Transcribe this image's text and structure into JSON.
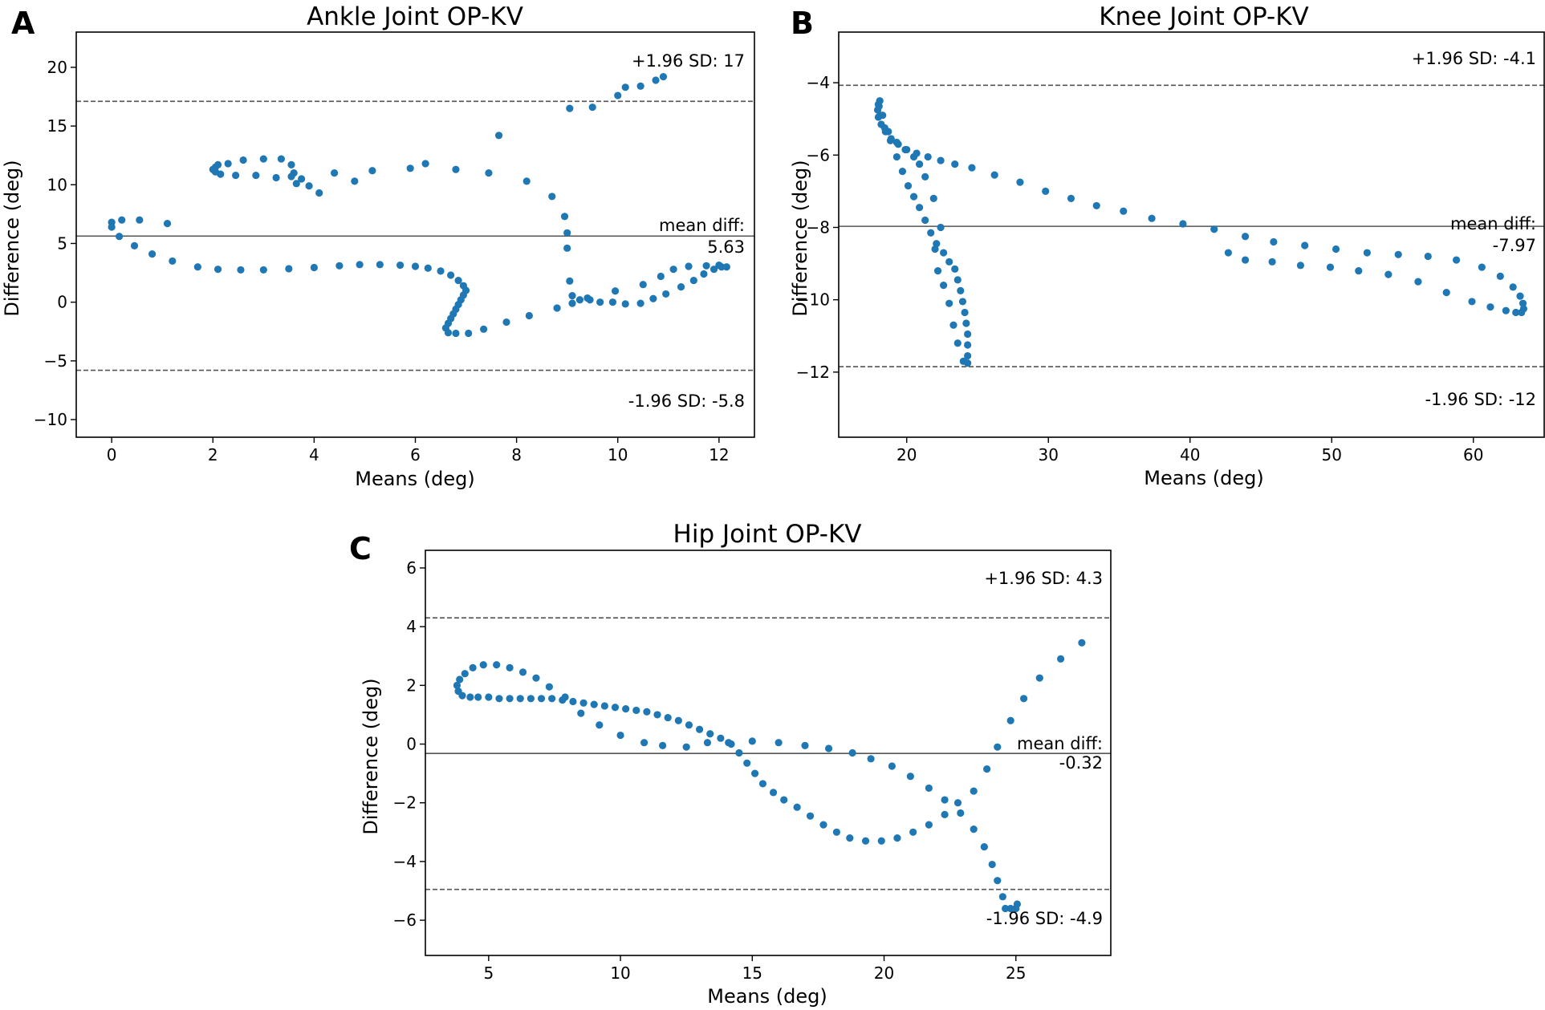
{
  "figure": {
    "panels": [
      {
        "letter": "A"
      },
      {
        "letter": "B"
      },
      {
        "letter": "C"
      }
    ]
  },
  "colors": {
    "point": "#1f77b4",
    "axis": "#000000",
    "line": "#555555",
    "text": "#000000"
  },
  "chart_data": [
    {
      "type": "scatter",
      "title": "Ankle Joint OP-KV",
      "xlabel": "Means (deg)",
      "ylabel": "Difference (deg)",
      "xlim": [
        -0.7,
        12.7
      ],
      "ylim": [
        -11.5,
        23
      ],
      "xticks": [
        0,
        2,
        4,
        6,
        8,
        10,
        12
      ],
      "yticks": [
        -10,
        -5,
        0,
        5,
        10,
        15,
        20
      ],
      "upper_loa": {
        "value": 17.1,
        "label": "+1.96 SD: 17"
      },
      "mean_diff": {
        "value": 5.63,
        "label": "mean diff:",
        "value_label": "5.63"
      },
      "lower_loa": {
        "value": -5.8,
        "label": "-1.96 SD: -5.8"
      },
      "points": [
        [
          0,
          6.8
        ],
        [
          0,
          6.4
        ],
        [
          0.2,
          7
        ],
        [
          0.55,
          7
        ],
        [
          1.1,
          6.7
        ],
        [
          0.15,
          5.6
        ],
        [
          0.45,
          4.8
        ],
        [
          0.8,
          4.1
        ],
        [
          1.2,
          3.5
        ],
        [
          1.7,
          3.0
        ],
        [
          2.1,
          2.8
        ],
        [
          2.55,
          2.75
        ],
        [
          3.0,
          2.75
        ],
        [
          3.5,
          2.85
        ],
        [
          4.0,
          2.95
        ],
        [
          4.5,
          3.1
        ],
        [
          4.9,
          3.2
        ],
        [
          5.3,
          3.2
        ],
        [
          5.7,
          3.15
        ],
        [
          6.0,
          3.05
        ],
        [
          6.25,
          2.9
        ],
        [
          6.5,
          2.65
        ],
        [
          6.7,
          2.3
        ],
        [
          6.85,
          1.85
        ],
        [
          6.95,
          1.4
        ],
        [
          7.0,
          1.0
        ],
        [
          6.95,
          0.6
        ],
        [
          6.9,
          0.2
        ],
        [
          6.85,
          -0.2
        ],
        [
          6.8,
          -0.6
        ],
        [
          6.75,
          -1.0
        ],
        [
          6.7,
          -1.4
        ],
        [
          6.65,
          -1.8
        ],
        [
          6.6,
          -2.2
        ],
        [
          6.65,
          -2.6
        ],
        [
          6.8,
          -2.65
        ],
        [
          7.05,
          -2.65
        ],
        [
          7.35,
          -2.3
        ],
        [
          7.8,
          -1.7
        ],
        [
          8.25,
          -1.15
        ],
        [
          8.8,
          -0.5
        ],
        [
          9.1,
          0.55
        ],
        [
          9.25,
          0.2
        ],
        [
          9.45,
          0.2
        ],
        [
          9.65,
          0.0
        ],
        [
          9.9,
          0.0
        ],
        [
          10.15,
          -0.15
        ],
        [
          10.45,
          -0.1
        ],
        [
          10.7,
          0.3
        ],
        [
          10.95,
          0.7
        ],
        [
          11.25,
          1.3
        ],
        [
          11.5,
          1.85
        ],
        [
          11.7,
          2.4
        ],
        [
          11.9,
          2.8
        ],
        [
          12.05,
          3.0
        ],
        [
          12.15,
          3.0
        ],
        [
          12.0,
          3.15
        ],
        [
          11.75,
          3.1
        ],
        [
          11.4,
          3.05
        ],
        [
          11.1,
          2.8
        ],
        [
          10.85,
          2.2
        ],
        [
          10.5,
          1.5
        ],
        [
          9.95,
          0.95
        ],
        [
          9.4,
          0.35
        ],
        [
          9.1,
          -0.1
        ],
        [
          9.05,
          1.8
        ],
        [
          9.0,
          4.6
        ],
        [
          9.0,
          5.9
        ],
        [
          8.95,
          7.3
        ],
        [
          8.7,
          9.0
        ],
        [
          8.2,
          10.3
        ],
        [
          7.45,
          11.0
        ],
        [
          7.65,
          14.2
        ],
        [
          9.05,
          16.5
        ],
        [
          9.5,
          16.6
        ],
        [
          10.0,
          17.6
        ],
        [
          10.15,
          18.3
        ],
        [
          10.45,
          18.4
        ],
        [
          10.75,
          18.9
        ],
        [
          10.9,
          19.2
        ],
        [
          2.0,
          11.3
        ],
        [
          2.05,
          11.5
        ],
        [
          2.1,
          11.7
        ],
        [
          2.3,
          11.8
        ],
        [
          2.6,
          12.1
        ],
        [
          3.0,
          12.2
        ],
        [
          3.35,
          12.2
        ],
        [
          3.55,
          11.7
        ],
        [
          3.6,
          11.0
        ],
        [
          3.75,
          10.5
        ],
        [
          3.9,
          9.9
        ],
        [
          4.1,
          9.3
        ],
        [
          3.65,
          10.1
        ],
        [
          3.55,
          10.7
        ],
        [
          3.25,
          10.6
        ],
        [
          2.85,
          10.8
        ],
        [
          2.45,
          10.8
        ],
        [
          2.15,
          10.9
        ],
        [
          2.05,
          11.1
        ],
        [
          4.4,
          11.0
        ],
        [
          4.8,
          10.3
        ],
        [
          5.15,
          11.2
        ],
        [
          5.9,
          11.4
        ],
        [
          6.2,
          11.8
        ],
        [
          6.8,
          11.3
        ]
      ]
    },
    {
      "type": "scatter",
      "title": "Knee Joint OP-KV",
      "xlabel": "Means (deg)",
      "ylabel": "Difference (deg)",
      "xlim": [
        15.2,
        65
      ],
      "ylim": [
        -13.8,
        -2.6
      ],
      "xticks": [
        20,
        30,
        40,
        50,
        60
      ],
      "yticks": [
        -12,
        -10,
        -8,
        -6,
        -4
      ],
      "upper_loa": {
        "value": -4.07,
        "label": "+1.96 SD: -4.1"
      },
      "mean_diff": {
        "value": -7.97,
        "label": "mean diff:",
        "value_label": "-7.97"
      },
      "lower_loa": {
        "value": -11.85,
        "label": "-1.96 SD: -12"
      },
      "points": [
        [
          18.1,
          -4.5
        ],
        [
          18.0,
          -4.6
        ],
        [
          17.95,
          -4.75
        ],
        [
          18.0,
          -4.95
        ],
        [
          18.2,
          -5.15
        ],
        [
          18.5,
          -5.35
        ],
        [
          18.9,
          -5.55
        ],
        [
          19.4,
          -5.7
        ],
        [
          20.0,
          -5.85
        ],
        [
          20.7,
          -5.95
        ],
        [
          21.5,
          -6.05
        ],
        [
          22.4,
          -6.15
        ],
        [
          23.4,
          -6.25
        ],
        [
          24.6,
          -6.35
        ],
        [
          26.2,
          -6.55
        ],
        [
          28.0,
          -6.75
        ],
        [
          29.8,
          -7.0
        ],
        [
          31.6,
          -7.2
        ],
        [
          33.4,
          -7.4
        ],
        [
          35.3,
          -7.55
        ],
        [
          37.3,
          -7.75
        ],
        [
          39.5,
          -7.9
        ],
        [
          41.7,
          -8.05
        ],
        [
          43.9,
          -8.25
        ],
        [
          45.9,
          -8.4
        ],
        [
          48.1,
          -8.5
        ],
        [
          50.3,
          -8.6
        ],
        [
          52.5,
          -8.7
        ],
        [
          54.7,
          -8.75
        ],
        [
          56.8,
          -8.8
        ],
        [
          58.8,
          -8.9
        ],
        [
          60.6,
          -9.1
        ],
        [
          61.9,
          -9.35
        ],
        [
          62.8,
          -9.65
        ],
        [
          63.3,
          -9.9
        ],
        [
          63.5,
          -10.1
        ],
        [
          63.55,
          -10.25
        ],
        [
          63.4,
          -10.35
        ],
        [
          63.0,
          -10.35
        ],
        [
          62.3,
          -10.3
        ],
        [
          61.2,
          -10.2
        ],
        [
          59.9,
          -10.05
        ],
        [
          58.1,
          -9.8
        ],
        [
          56.1,
          -9.5
        ],
        [
          54.0,
          -9.3
        ],
        [
          51.9,
          -9.2
        ],
        [
          49.9,
          -9.1
        ],
        [
          47.8,
          -9.05
        ],
        [
          45.8,
          -8.95
        ],
        [
          43.9,
          -8.9
        ],
        [
          42.7,
          -8.7
        ],
        [
          18.05,
          -4.65
        ],
        [
          18.15,
          -4.9
        ],
        [
          18.45,
          -5.25
        ],
        [
          18.85,
          -5.6
        ],
        [
          19.3,
          -6.05
        ],
        [
          19.7,
          -6.45
        ],
        [
          20.1,
          -6.85
        ],
        [
          20.5,
          -7.15
        ],
        [
          20.9,
          -7.45
        ],
        [
          21.3,
          -7.8
        ],
        [
          21.7,
          -8.15
        ],
        [
          22.1,
          -8.45
        ],
        [
          22.6,
          -8.7
        ],
        [
          23.0,
          -8.95
        ],
        [
          23.4,
          -9.15
        ],
        [
          23.6,
          -9.45
        ],
        [
          23.8,
          -9.75
        ],
        [
          23.95,
          -10.05
        ],
        [
          24.1,
          -10.35
        ],
        [
          24.2,
          -10.65
        ],
        [
          24.3,
          -10.95
        ],
        [
          24.3,
          -11.25
        ],
        [
          24.3,
          -11.55
        ],
        [
          24.3,
          -11.75
        ],
        [
          24.0,
          -11.7
        ],
        [
          23.6,
          -11.2
        ],
        [
          23.3,
          -10.7
        ],
        [
          23.0,
          -10.1
        ],
        [
          22.6,
          -9.6
        ],
        [
          22.2,
          -9.2
        ],
        [
          22.0,
          -8.6
        ],
        [
          22.4,
          -8.0
        ],
        [
          21.9,
          -7.2
        ],
        [
          21.3,
          -6.6
        ],
        [
          20.9,
          -6.25
        ],
        [
          20.5,
          -6.05
        ],
        [
          19.9,
          -5.85
        ],
        [
          19.3,
          -5.65
        ],
        [
          18.7,
          -5.35
        ],
        [
          18.3,
          -4.9
        ]
      ]
    },
    {
      "type": "scatter",
      "title": "Hip Joint OP-KV",
      "xlabel": "Means (deg)",
      "ylabel": "Difference (deg)",
      "xlim": [
        2.6,
        28.6
      ],
      "ylim": [
        -7.2,
        6.6
      ],
      "xticks": [
        5,
        10,
        15,
        20,
        25
      ],
      "yticks": [
        -6,
        -4,
        -2,
        0,
        2,
        4,
        6
      ],
      "upper_loa": {
        "value": 4.3,
        "label": "+1.96 SD: 4.3"
      },
      "mean_diff": {
        "value": -0.32,
        "label": "mean diff:",
        "value_label": "-0.32"
      },
      "lower_loa": {
        "value": -4.95,
        "label": "-1.96 SD: -4.9"
      },
      "points": [
        [
          3.8,
          2.0
        ],
        [
          3.85,
          1.8
        ],
        [
          4.0,
          1.65
        ],
        [
          4.3,
          1.6
        ],
        [
          4.6,
          1.6
        ],
        [
          5.0,
          1.6
        ],
        [
          5.4,
          1.55
        ],
        [
          5.8,
          1.55
        ],
        [
          6.2,
          1.55
        ],
        [
          6.6,
          1.55
        ],
        [
          7.0,
          1.55
        ],
        [
          7.4,
          1.55
        ],
        [
          7.8,
          1.5
        ],
        [
          8.2,
          1.45
        ],
        [
          8.6,
          1.4
        ],
        [
          9.0,
          1.35
        ],
        [
          9.4,
          1.3
        ],
        [
          9.8,
          1.25
        ],
        [
          10.2,
          1.2
        ],
        [
          10.6,
          1.15
        ],
        [
          11.0,
          1.1
        ],
        [
          11.4,
          1.0
        ],
        [
          11.8,
          0.9
        ],
        [
          12.2,
          0.8
        ],
        [
          12.6,
          0.65
        ],
        [
          13.0,
          0.5
        ],
        [
          13.4,
          0.35
        ],
        [
          13.8,
          0.2
        ],
        [
          14.2,
          0.0
        ],
        [
          14.5,
          -0.3
        ],
        [
          14.8,
          -0.65
        ],
        [
          15.1,
          -1.0
        ],
        [
          15.4,
          -1.35
        ],
        [
          15.8,
          -1.65
        ],
        [
          16.2,
          -1.9
        ],
        [
          16.7,
          -2.15
        ],
        [
          17.2,
          -2.45
        ],
        [
          17.7,
          -2.75
        ],
        [
          18.2,
          -3.0
        ],
        [
          18.7,
          -3.2
        ],
        [
          19.3,
          -3.3
        ],
        [
          19.9,
          -3.3
        ],
        [
          20.5,
          -3.2
        ],
        [
          21.1,
          -3.0
        ],
        [
          21.7,
          -2.75
        ],
        [
          22.3,
          -2.4
        ],
        [
          22.8,
          -2.0
        ],
        [
          23.4,
          -1.6
        ],
        [
          23.9,
          -0.85
        ],
        [
          24.3,
          -0.1
        ],
        [
          24.8,
          0.8
        ],
        [
          25.3,
          1.55
        ],
        [
          25.9,
          2.25
        ],
        [
          26.7,
          2.9
        ],
        [
          27.5,
          3.45
        ],
        [
          3.9,
          2.2
        ],
        [
          4.1,
          2.4
        ],
        [
          4.4,
          2.6
        ],
        [
          4.8,
          2.7
        ],
        [
          5.3,
          2.7
        ],
        [
          5.8,
          2.6
        ],
        [
          6.3,
          2.45
        ],
        [
          6.8,
          2.25
        ],
        [
          7.3,
          1.95
        ],
        [
          7.9,
          1.6
        ],
        [
          8.5,
          1.05
        ],
        [
          9.2,
          0.65
        ],
        [
          10.0,
          0.3
        ],
        [
          10.9,
          0.05
        ],
        [
          11.6,
          -0.05
        ],
        [
          12.5,
          -0.1
        ],
        [
          13.3,
          0.05
        ],
        [
          14.1,
          0.05
        ],
        [
          15.0,
          0.1
        ],
        [
          16.0,
          0.05
        ],
        [
          17.0,
          -0.05
        ],
        [
          17.9,
          -0.15
        ],
        [
          18.8,
          -0.3
        ],
        [
          19.5,
          -0.5
        ],
        [
          20.3,
          -0.75
        ],
        [
          21.0,
          -1.1
        ],
        [
          21.7,
          -1.5
        ],
        [
          22.3,
          -1.9
        ],
        [
          22.9,
          -2.35
        ],
        [
          23.4,
          -2.9
        ],
        [
          23.8,
          -3.5
        ],
        [
          24.1,
          -4.1
        ],
        [
          24.3,
          -4.65
        ],
        [
          24.5,
          -5.2
        ],
        [
          24.6,
          -5.6
        ],
        [
          25.0,
          -5.6
        ],
        [
          25.05,
          -5.45
        ],
        [
          24.8,
          -5.6
        ]
      ]
    }
  ]
}
